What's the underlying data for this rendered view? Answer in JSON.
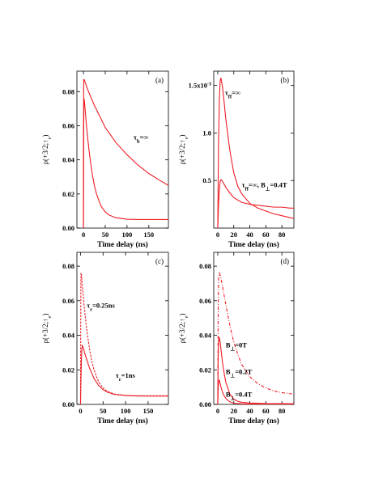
{
  "chart_data": [
    {
      "id": "a",
      "type": "line",
      "panel_label": "(a)",
      "xlabel": "Time delay (ns)",
      "ylabel": "ρ(+3/2;↑e)",
      "xlim": [
        -15,
        195
      ],
      "ylim": [
        0,
        0.092
      ],
      "x_ticks": [
        0,
        50,
        100,
        150
      ],
      "x_tick_labels": [
        "0",
        "50",
        "100",
        "150"
      ],
      "y_ticks": [
        0,
        0.02,
        0.04,
        0.06,
        0.08
      ],
      "y_tick_labels": [
        "0.00",
        "0.02",
        "0.04",
        "0.06",
        "0.08"
      ],
      "color": "#ee1c25",
      "series": [
        {
          "style": "solid",
          "x": [
            0,
            0.5,
            1,
            2,
            3,
            5,
            7,
            10,
            15,
            20,
            25,
            30,
            40,
            50,
            60,
            75,
            100,
            125,
            150,
            175,
            195
          ],
          "y": [
            0,
            0.05,
            0.076,
            0.075,
            0.072,
            0.066,
            0.06,
            0.052,
            0.041,
            0.032,
            0.025,
            0.02,
            0.013,
            0.0095,
            0.0075,
            0.006,
            0.0052,
            0.005,
            0.005,
            0.005,
            0.005
          ]
        },
        {
          "style": "solid",
          "x": [
            0,
            0.3,
            0.6,
            2,
            10,
            25,
            50,
            75,
            100,
            125,
            150,
            175,
            195
          ],
          "y": [
            0,
            0.06,
            0.087,
            0.087,
            0.081,
            0.072,
            0.059,
            0.05,
            0.043,
            0.037,
            0.032,
            0.028,
            0.025
          ]
        }
      ],
      "annotations": [
        {
          "text": "τh=∞",
          "x": 115,
          "y": 0.052
        }
      ]
    },
    {
      "id": "b",
      "type": "line",
      "panel_label": "(b)",
      "xlabel": "Time delay (ns)",
      "ylabel": "ρ(+3/2;↑e)",
      "xlim": [
        -5,
        95
      ],
      "ylim": [
        0,
        0.00165
      ],
      "x_ticks": [
        0,
        20,
        40,
        60,
        80
      ],
      "x_tick_labels": [
        "0",
        "20",
        "40",
        "60",
        "80"
      ],
      "y_ticks": [
        0.0005,
        0.001,
        0.0015
      ],
      "y_tick_labels": [
        "0.5",
        "1.0",
        "1.5x10-3"
      ],
      "color": "#ee1c25",
      "series": [
        {
          "style": "solid",
          "x": [
            0,
            0.5,
            1,
            2,
            3,
            4,
            6,
            8,
            10,
            15,
            20,
            25,
            30,
            40,
            50,
            60,
            70,
            80,
            90,
            95
          ],
          "y": [
            0,
            0.00045,
            0.0009,
            0.00135,
            0.00155,
            0.00158,
            0.00148,
            0.00132,
            0.00115,
            0.00082,
            0.00058,
            0.00044,
            0.00036,
            0.00026,
            0.00021,
            0.00018,
            0.00015,
            0.00013,
            0.00011,
            0.0001
          ]
        },
        {
          "style": "solid",
          "x": [
            0,
            1,
            2,
            3,
            4,
            6,
            8,
            10,
            15,
            20,
            30,
            40,
            50,
            60,
            70,
            80,
            90,
            95
          ],
          "y": [
            0,
            0.00025,
            0.0004,
            0.00049,
            0.00051,
            0.00049,
            0.00046,
            0.00043,
            0.00037,
            0.00032,
            0.00027,
            0.00025,
            0.00024,
            0.00023,
            0.00022,
            0.00022,
            0.00021,
            0.00021
          ]
        }
      ],
      "annotations": [
        {
          "text": "τff=∞",
          "x": 9,
          "y": 0.0014
        },
        {
          "text": "τff=∞, B⊥=0.4T",
          "x": 30,
          "y": 0.00043
        }
      ]
    },
    {
      "id": "c",
      "type": "line",
      "panel_label": "(c)",
      "xlabel": "Time delay (ns)",
      "ylabel": "ρ(+3/2;↑e)",
      "xlim": [
        -8,
        195
      ],
      "ylim": [
        0,
        0.088
      ],
      "x_ticks": [
        0,
        50,
        100,
        150
      ],
      "x_tick_labels": [
        "0",
        "50",
        "100",
        "150"
      ],
      "y_ticks": [
        0,
        0.02,
        0.04,
        0.06,
        0.08
      ],
      "y_tick_labels": [
        "0.00",
        "0.02",
        "0.04",
        "0.06",
        "0.08"
      ],
      "color": "#ee1c25",
      "series": [
        {
          "style": "dashed",
          "x": [
            0,
            0.5,
            1,
            2,
            3,
            5,
            7,
            10,
            15,
            20,
            25,
            30,
            40,
            50,
            60,
            75,
            100,
            125,
            150,
            175,
            195
          ],
          "y": [
            0,
            0.05,
            0.076,
            0.075,
            0.072,
            0.066,
            0.06,
            0.052,
            0.041,
            0.032,
            0.025,
            0.02,
            0.013,
            0.0095,
            0.0075,
            0.006,
            0.0052,
            0.005,
            0.005,
            0.005,
            0.005
          ]
        },
        {
          "style": "solid",
          "x": [
            0,
            1,
            2,
            3,
            4,
            6,
            8,
            10,
            15,
            20,
            25,
            30,
            40,
            50,
            60,
            75,
            100,
            125,
            150,
            175,
            195
          ],
          "y": [
            0,
            0.015,
            0.026,
            0.032,
            0.034,
            0.033,
            0.031,
            0.029,
            0.025,
            0.021,
            0.018,
            0.015,
            0.011,
            0.0085,
            0.007,
            0.0058,
            0.0051,
            0.0049,
            0.0048,
            0.0048,
            0.0048
          ]
        }
      ],
      "annotations": [
        {
          "text": "τr=0.25ns",
          "x": 14,
          "y": 0.056
        },
        {
          "text": "τr=1ns",
          "x": 78,
          "y": 0.0155
        }
      ]
    },
    {
      "id": "d",
      "type": "line",
      "panel_label": "(d)",
      "xlabel": "Time delay (ns)",
      "ylabel": "ρ(+3/2;↑e)",
      "xlim": [
        -5,
        95
      ],
      "ylim": [
        0,
        0.088
      ],
      "x_ticks": [
        0,
        20,
        40,
        60,
        80
      ],
      "x_tick_labels": [
        "0",
        "20",
        "40",
        "60",
        "80"
      ],
      "y_ticks": [
        0,
        0.02,
        0.04,
        0.06,
        0.08
      ],
      "y_tick_labels": [
        "0.00",
        "0.02",
        "0.04",
        "0.06",
        "0.08"
      ],
      "color": "#ee1c25",
      "series": [
        {
          "style": "dashdot",
          "x": [
            0,
            0.5,
            1,
            2,
            3,
            4,
            6,
            8,
            10,
            15,
            20,
            25,
            30,
            40,
            50,
            60,
            70,
            80,
            90,
            95
          ],
          "y": [
            0,
            0.05,
            0.073,
            0.076,
            0.075,
            0.073,
            0.068,
            0.063,
            0.058,
            0.046,
            0.036,
            0.029,
            0.023,
            0.016,
            0.012,
            0.0095,
            0.0078,
            0.0068,
            0.0062,
            0.006
          ]
        },
        {
          "style": "solid",
          "x": [
            0,
            0.5,
            1,
            2,
            3,
            4,
            6,
            8,
            10,
            15,
            20,
            25,
            30,
            40,
            60,
            95
          ],
          "y": [
            0,
            0.025,
            0.036,
            0.039,
            0.036,
            0.032,
            0.024,
            0.018,
            0.013,
            0.006,
            0.003,
            0.0018,
            0.0012,
            0.0008,
            0.0005,
            0.0004
          ]
        },
        {
          "style": "solid",
          "x": [
            0,
            0.5,
            1,
            2,
            3,
            4,
            6,
            8,
            10,
            15,
            20,
            30,
            40,
            95
          ],
          "y": [
            0,
            0.009,
            0.013,
            0.014,
            0.012,
            0.01,
            0.007,
            0.005,
            0.0035,
            0.0015,
            0.0007,
            0.0003,
            0.0002,
            0.0001
          ]
        }
      ],
      "annotations": [
        {
          "text": "B⊥=0T",
          "x": 10,
          "y": 0.033
        },
        {
          "text": "B⊥=0.2T",
          "x": 10,
          "y": 0.0175
        },
        {
          "text": "B⊥=0.4T",
          "x": 10,
          "y": 0.0045
        }
      ]
    }
  ]
}
